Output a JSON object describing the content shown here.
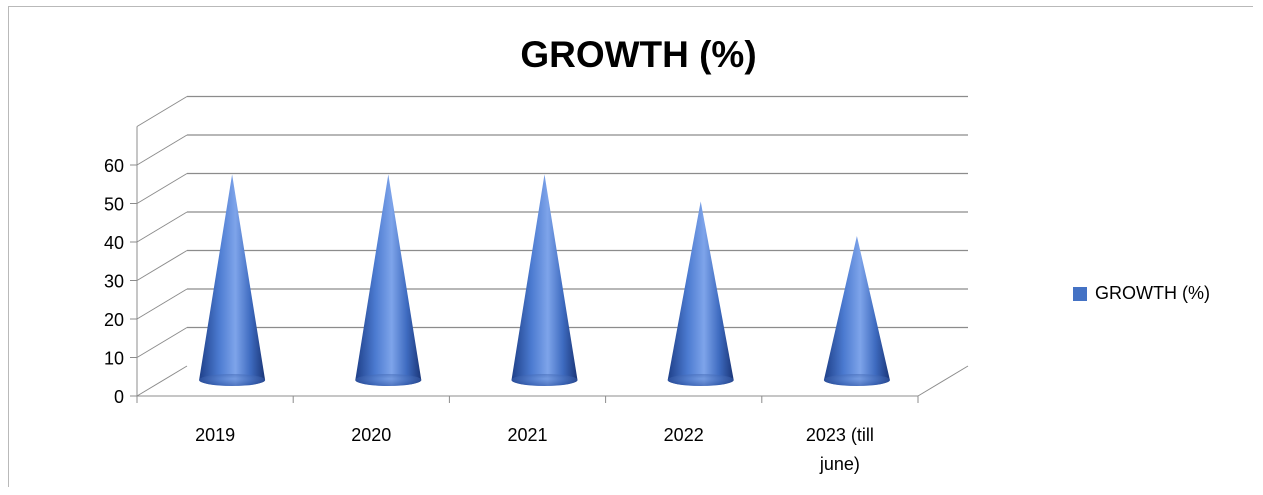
{
  "chart_data": {
    "type": "bar",
    "style": "3d-cone",
    "title": "GROWTH (%)",
    "categories": [
      "2019",
      "2020",
      "2021",
      "2022",
      [
        "2023 (till",
        "june)"
      ]
    ],
    "series": [
      {
        "name": "GROWTH (%)",
        "values": [
          56,
          56,
          56,
          49,
          40
        ],
        "color": "#4472c4"
      }
    ],
    "yticks": [
      0,
      10,
      20,
      30,
      40,
      50,
      60
    ],
    "ylim": [
      0,
      60
    ],
    "grid": true,
    "legend": "right"
  }
}
